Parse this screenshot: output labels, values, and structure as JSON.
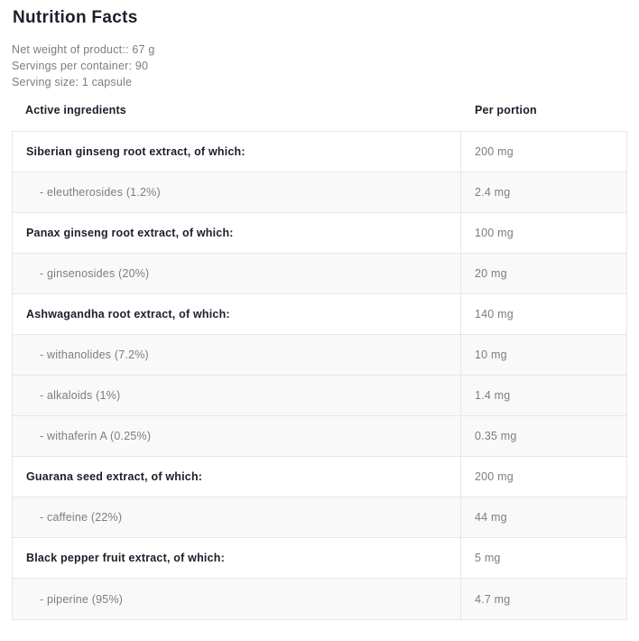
{
  "page": {
    "title": "Nutrition Facts",
    "meta": [
      "Net weight of product:: 67 g",
      "Servings per container: 90",
      "Serving size: 1 capsule"
    ]
  },
  "table": {
    "headers": {
      "ingredient": "Active ingredients",
      "per_portion": "Per portion"
    },
    "rows": [
      {
        "type": "main",
        "label": "Siberian ginseng root extract, of which:",
        "value": "200 mg"
      },
      {
        "type": "sub",
        "label": "- eleutherosides (1.2%)",
        "value": "2.4 mg"
      },
      {
        "type": "main",
        "label": "Panax ginseng root extract, of which:",
        "value": "100 mg"
      },
      {
        "type": "sub",
        "label": "- ginsenosides (20%)",
        "value": "20 mg"
      },
      {
        "type": "main",
        "label": "Ashwagandha root extract, of which:",
        "value": "140 mg"
      },
      {
        "type": "sub",
        "label": "- withanolides (7.2%)",
        "value": "10 mg"
      },
      {
        "type": "sub",
        "label": "- alkaloids (1%)",
        "value": "1.4 mg"
      },
      {
        "type": "sub",
        "label": "- withaferin A (0.25%)",
        "value": "0.35 mg"
      },
      {
        "type": "main",
        "label": "Guarana seed extract, of which:",
        "value": "200 mg"
      },
      {
        "type": "sub",
        "label": "- caffeine (22%)",
        "value": "44 mg"
      },
      {
        "type": "main",
        "label": "Black pepper fruit extract, of which:",
        "value": "5 mg"
      },
      {
        "type": "sub",
        "label": "- piperine (95%)",
        "value": "4.7 mg"
      }
    ]
  },
  "colors": {
    "dark_text": "#1e1e2c",
    "gray_text": "#7d7d7d",
    "border": "#e7e7e7",
    "sub_row_bg": "#f9f9f9"
  }
}
